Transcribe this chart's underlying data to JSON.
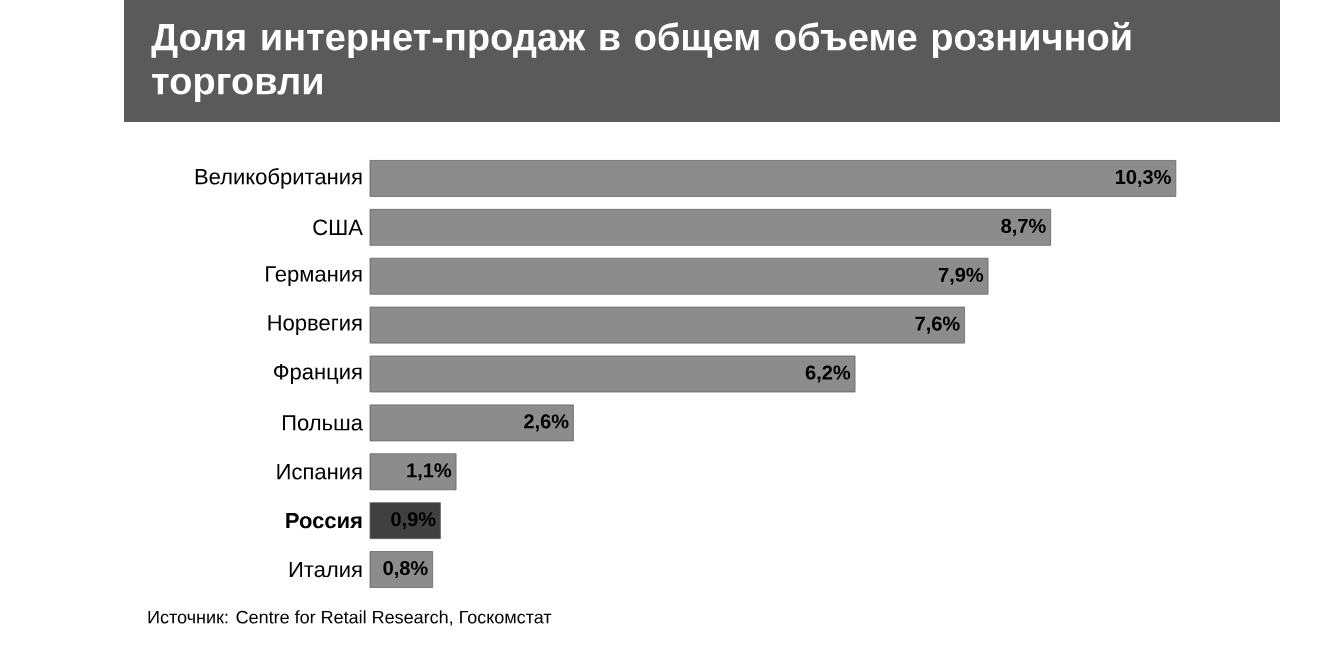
{
  "chart_data": {
    "type": "bar",
    "orientation": "horizontal",
    "title": "Доля интернет-продаж в общем объеме розничной торговли",
    "categories": [
      "Великобритания",
      "США",
      "Германия",
      "Норвегия",
      "Франция",
      "Польша",
      "Испания",
      "**Россия**",
      "Италия"
    ],
    "values": [
      10.3,
      8.7,
      7.9,
      7.6,
      6.2,
      2.6,
      1.1,
      0.9,
      0.8
    ],
    "value_labels": [
      "10,3%",
      "8,7%",
      "7,9%",
      "7,6%",
      "6,2%",
      "2,6%",
      "1,1%",
      "0,9%",
      "0,8%"
    ],
    "colors": [
      "#8c8c8c",
      "#8c8c8c",
      "#8c8c8c",
      "#8c8c8c",
      "#8c8c8c",
      "#8c8c8c",
      "#8c8c8c",
      "#404040",
      "#8c8c8c"
    ],
    "annotations": [
      "Источник: Centre for Retail Research, Госкомстат"
    ]
  }
}
